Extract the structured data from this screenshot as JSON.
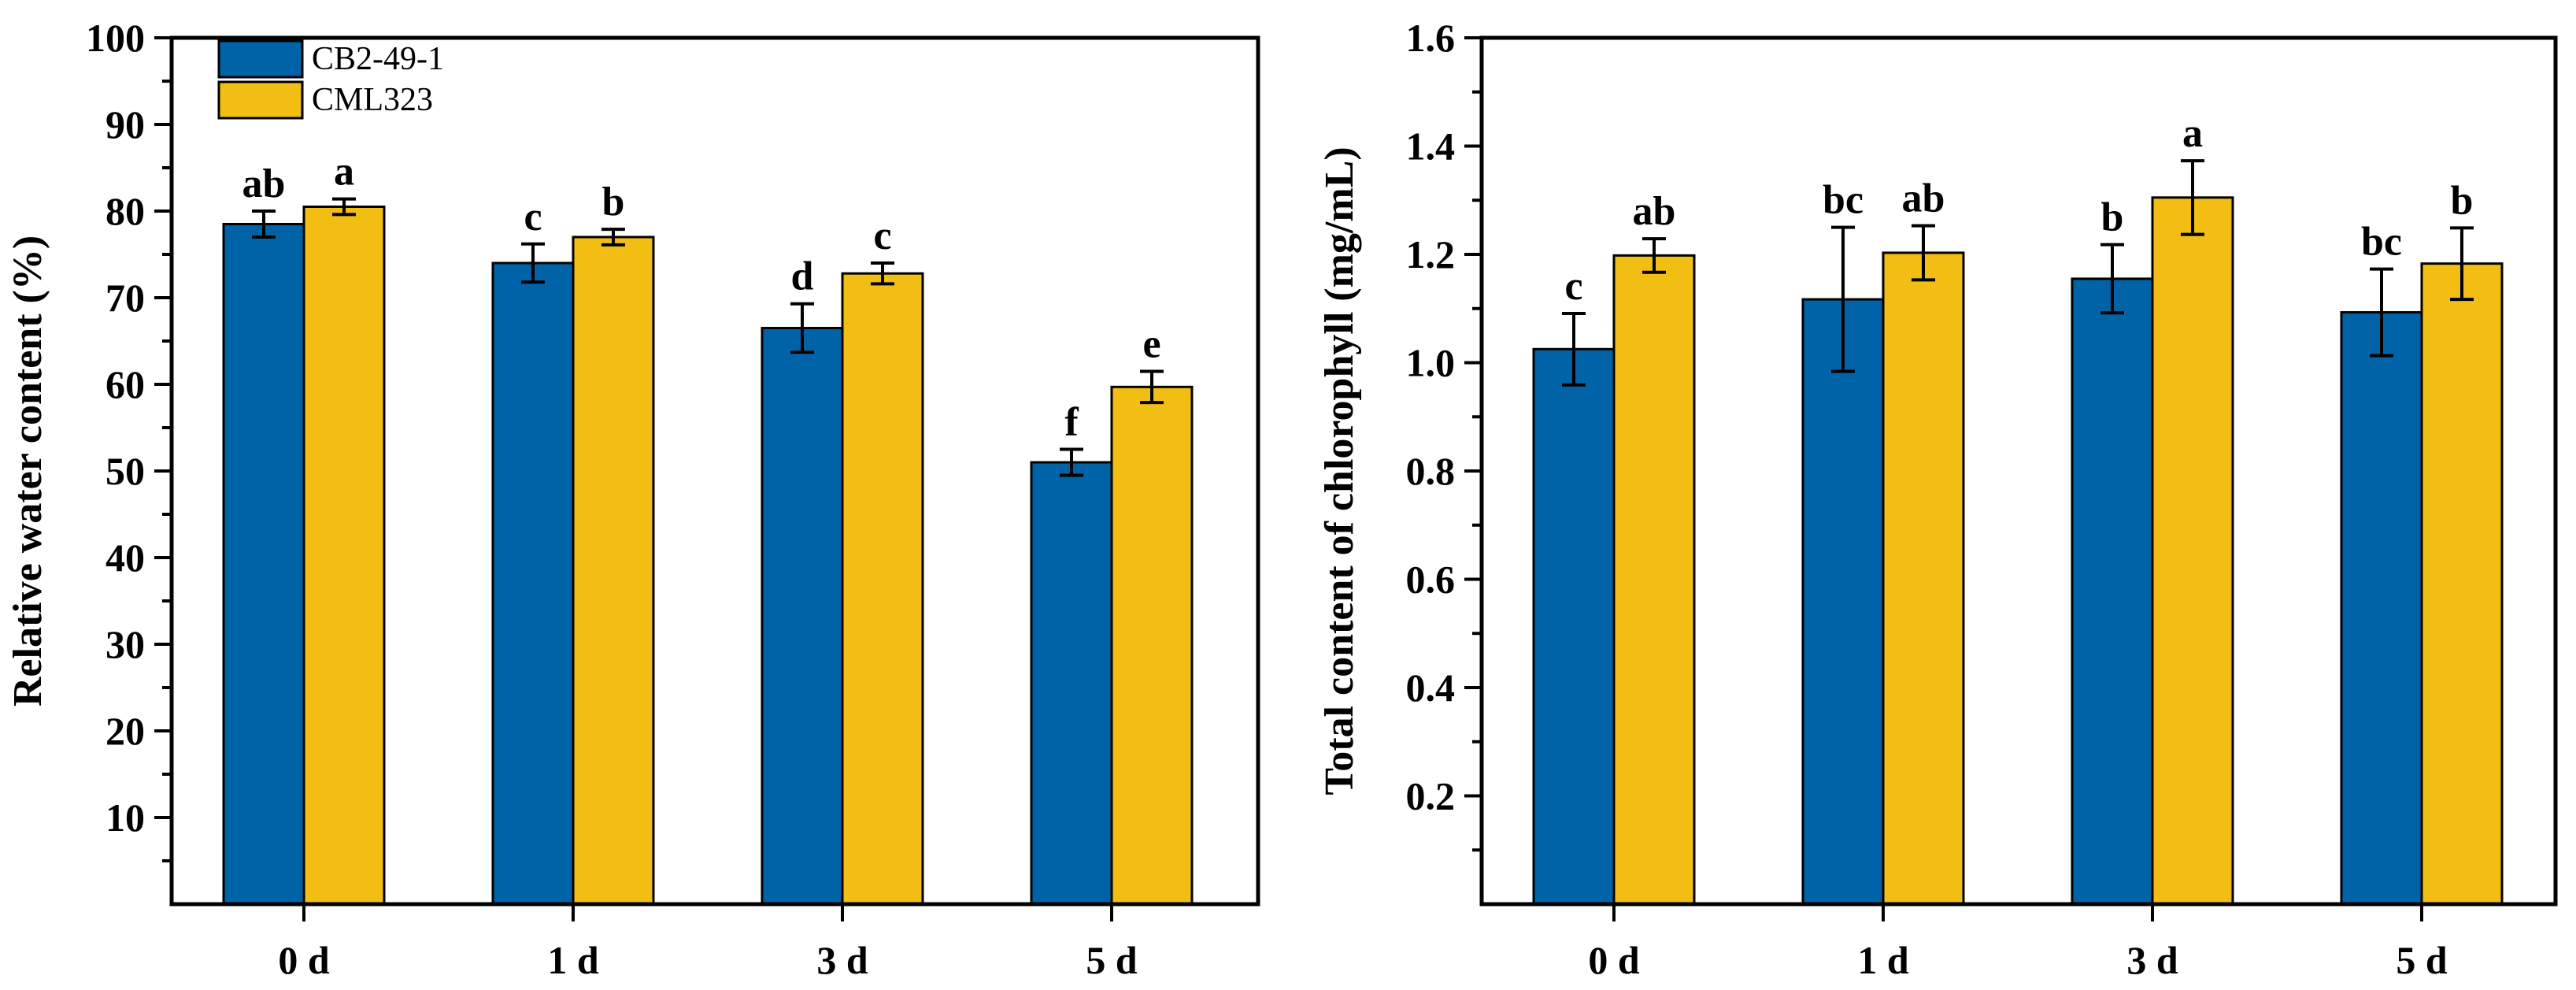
{
  "colors": {
    "series1": "#0063a8",
    "series2": "#f2be14",
    "axis": "#000000"
  },
  "chart_data": [
    {
      "type": "bar",
      "categories": [
        "0 d",
        "1 d",
        "3 d",
        "5 d"
      ],
      "ylabel": "Relative water content (%)",
      "xlabel": "",
      "ylim": [
        0,
        100
      ],
      "yticks": [
        10,
        20,
        30,
        40,
        50,
        60,
        70,
        80,
        90,
        100
      ],
      "ytick_labels": [
        "10",
        "20",
        "30",
        "40",
        "50",
        "60",
        "70",
        "80",
        "90",
        "100"
      ],
      "legend": {
        "position": "top-left"
      },
      "series": [
        {
          "name": "CB2-49-1",
          "values": [
            78.5,
            74.0,
            66.5,
            51.0
          ],
          "errors": [
            1.5,
            2.2,
            2.8,
            1.5
          ],
          "labels": [
            "ab",
            "c",
            "d",
            "f"
          ]
        },
        {
          "name": "CML323",
          "values": [
            80.5,
            77.0,
            72.8,
            59.7
          ],
          "errors": [
            0.9,
            0.9,
            1.2,
            1.8
          ],
          "labels": [
            "a",
            "b",
            "c",
            "e"
          ]
        }
      ]
    },
    {
      "type": "bar",
      "categories": [
        "0 d",
        "1 d",
        "3 d",
        "5 d"
      ],
      "ylabel": "Total content of chlorophyll (mg/mL)",
      "xlabel": "",
      "ylim": [
        0,
        1.6
      ],
      "yticks": [
        0.2,
        0.4,
        0.6,
        0.8,
        1.0,
        1.2,
        1.4,
        1.6
      ],
      "ytick_labels": [
        "0.2",
        "0.4",
        "0.6",
        "0.8",
        "1.0",
        "1.2",
        "1.4",
        "1.6"
      ],
      "series": [
        {
          "name": "CB2-49-1",
          "values": [
            1.025,
            1.117,
            1.155,
            1.093
          ],
          "errors": [
            0.066,
            0.133,
            0.063,
            0.08
          ],
          "labels": [
            "c",
            "bc",
            "b",
            "bc"
          ]
        },
        {
          "name": "CML323",
          "values": [
            1.198,
            1.203,
            1.305,
            1.183
          ],
          "errors": [
            0.031,
            0.05,
            0.068,
            0.066
          ],
          "labels": [
            "ab",
            "ab",
            "a",
            "b"
          ]
        }
      ]
    }
  ]
}
